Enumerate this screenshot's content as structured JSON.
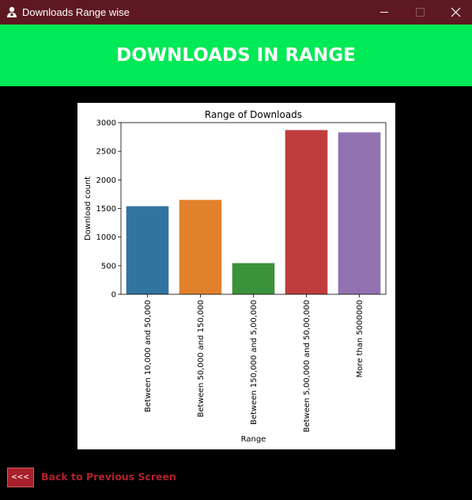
{
  "window": {
    "title": "Downloads Range wise",
    "icon": "app-icon"
  },
  "header": {
    "title": "DOWNLOADS IN RANGE"
  },
  "chart_data": {
    "type": "bar",
    "title": "Range of Downloads",
    "xlabel": "Range",
    "ylabel": "Download count",
    "categories": [
      "Between 10,000 and 50,000",
      "Between 50,000 and 150,000",
      "Between 150,000 and 5,00,000",
      "Between 5,00,000 and 50,00,000",
      "More than 5000000"
    ],
    "values": [
      1540,
      1650,
      545,
      2870,
      2830
    ],
    "colors": [
      "#3274a1",
      "#e1812c",
      "#3a923a",
      "#c03d3e",
      "#9372b2"
    ],
    "ylim": [
      0,
      3000
    ],
    "yticks": [
      0,
      500,
      1000,
      1500,
      2000,
      2500,
      3000
    ],
    "grid": false,
    "legend": "none"
  },
  "footer": {
    "back_button_label": "<<<",
    "back_link_label": "Back to Previous Screen"
  }
}
